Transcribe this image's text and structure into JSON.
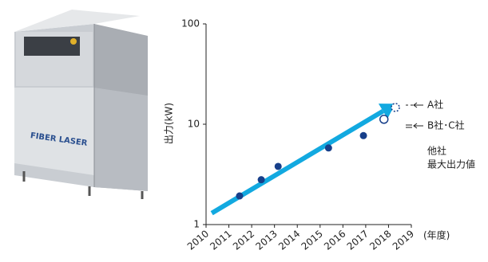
{
  "photo_label": "FIBER LASER",
  "chart_data": {
    "type": "scatter",
    "y_label": "出力(kW)",
    "x_label": "(年度)",
    "xlim": [
      2010,
      2019
    ],
    "xticks": [
      2010,
      2011,
      2012,
      2013,
      2014,
      2015,
      2016,
      2017,
      2018,
      2019
    ],
    "ylim": [
      1,
      100
    ],
    "yticks": [
      1,
      10,
      100
    ],
    "log_y": true,
    "series": [
      {
        "color": "#173f8a",
        "marker": "filled",
        "x": [
          2011.47,
          2012.42,
          2013.16,
          2015.37,
          2016.9
        ],
        "values": [
          1.93,
          2.8,
          3.8,
          5.8,
          7.7
        ]
      },
      {
        "color": "#173f8a",
        "marker": "open",
        "x": [
          2017.8
        ],
        "values": [
          11.2
        ]
      },
      {
        "color": "#173f8a",
        "marker": "dashed",
        "x": [
          2018.3
        ],
        "values": [
          14.7
        ]
      }
    ],
    "trend": {
      "color": "#12a9e0",
      "x": [
        2010.25,
        2018.3
      ],
      "values": [
        1.3,
        16
      ]
    },
    "annotations": [
      "A社",
      "B社･C社",
      "他社",
      "最大出力値"
    ]
  }
}
